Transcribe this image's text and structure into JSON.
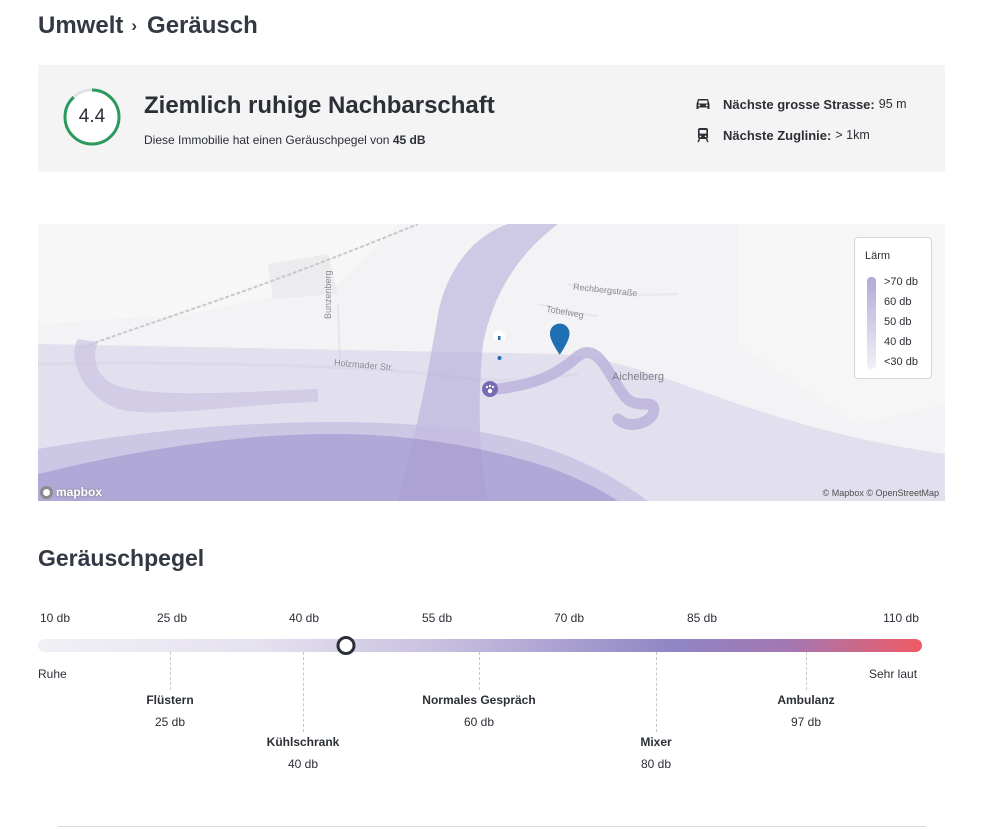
{
  "breadcrumb": {
    "parent": "Umwelt",
    "separator": "›",
    "current": "Geräusch"
  },
  "summary": {
    "score": "4.4",
    "score_fraction": 0.88,
    "title": "Ziemlich ruhige Nachbarschaft",
    "subtitle_prefix": "Diese Immobilie hat einen Geräuschpegel von",
    "subtitle_value": "45 dB",
    "street": {
      "icon": "car-icon",
      "label": "Nächste grosse Strasse:",
      "value": "95 m"
    },
    "rail": {
      "icon": "train-icon",
      "label": "Nächste Zuglinie:",
      "value": "> 1km"
    },
    "colors": {
      "score_ring": "#2c9a5c",
      "score_track": "#e2e2e6"
    }
  },
  "map": {
    "streets": [
      "Rechbergstraße",
      "Tobelweg",
      "Bunzenberg",
      "Holzmader Str."
    ],
    "place": "Aichelberg",
    "markers": [
      "home-marker-icon",
      "pet-marker-icon"
    ],
    "legend": {
      "title": "Lärm",
      "items": [
        ">70 db",
        "60 db",
        "50 db",
        "40 db",
        "<30 db"
      ]
    },
    "logo": "mapbox",
    "attribution": "© Mapbox © OpenStreetMap"
  },
  "noise": {
    "title": "Geräuschpegel",
    "ticks": [
      "10 db",
      "25 db",
      "40 db",
      "55 db",
      "70 db",
      "85 db",
      "110 db"
    ],
    "current_level_db": 45,
    "low_label": "Ruhe",
    "high_label": "Sehr laut",
    "references": [
      {
        "name": "Flüstern",
        "value": "25 db"
      },
      {
        "name": "Kühlschrank",
        "value": "40 db"
      },
      {
        "name": "Normales Gespräch",
        "value": "60 db"
      },
      {
        "name": "Mixer",
        "value": "80 db"
      },
      {
        "name": "Ambulanz",
        "value": "97 db"
      }
    ]
  }
}
